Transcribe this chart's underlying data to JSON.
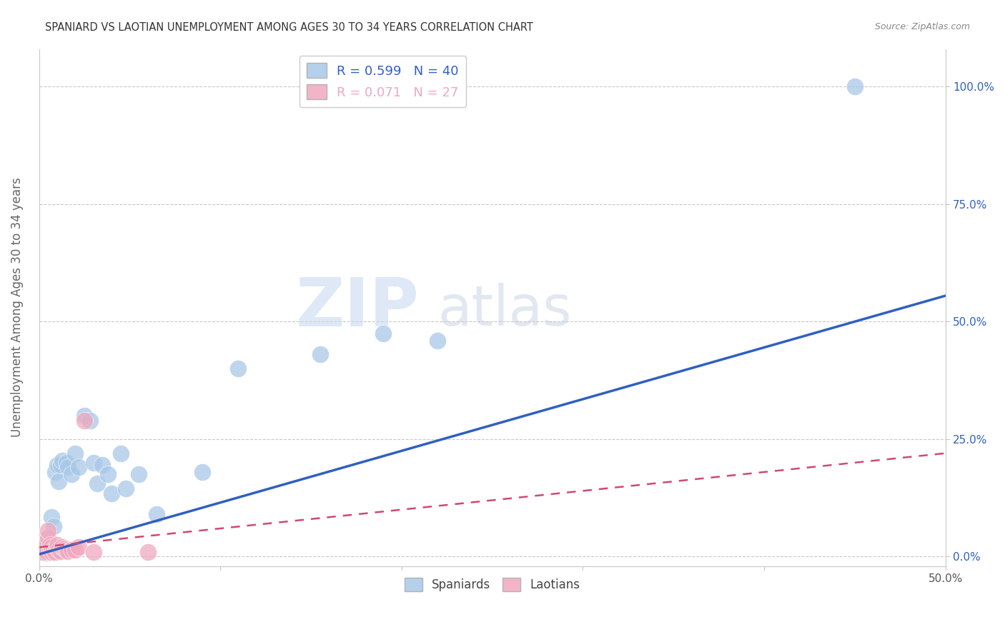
{
  "title": "SPANIARD VS LAOTIAN UNEMPLOYMENT AMONG AGES 30 TO 34 YEARS CORRELATION CHART",
  "source": "Source: ZipAtlas.com",
  "ylabel": "Unemployment Among Ages 30 to 34 years",
  "xlim": [
    0.0,
    0.5
  ],
  "ylim": [
    -0.02,
    1.08
  ],
  "xticks": [
    0.0,
    0.1,
    0.2,
    0.3,
    0.4,
    0.5
  ],
  "yticks": [
    0.0,
    0.25,
    0.5,
    0.75,
    1.0
  ],
  "ytick_labels": [
    "0.0%",
    "25.0%",
    "50.0%",
    "75.0%",
    "100.0%"
  ],
  "xtick_labels_left": [
    "0.0%",
    "",
    "",
    "",
    "",
    "50.0%"
  ],
  "background_color": "#ffffff",
  "grid_color": "#c8c8c8",
  "watermark_zip": "ZIP",
  "watermark_atlas": "atlas",
  "spaniard_color": "#a8c8e8",
  "laotian_color": "#f0a8be",
  "spaniard_line_color": "#3060c0",
  "laotian_line_color": "#d04870",
  "legend_R_spaniard": "0.599",
  "legend_N_spaniard": "40",
  "legend_R_laotian": "0.071",
  "legend_N_laotian": "27",
  "spaniard_line_x0": 0.0,
  "spaniard_line_y0": 0.005,
  "spaniard_line_x1": 0.5,
  "spaniard_line_y1": 0.555,
  "laotian_line_x0": 0.0,
  "laotian_line_y0": 0.02,
  "laotian_line_x1": 0.5,
  "laotian_line_y1": 0.22,
  "spaniard_x": [
    0.001,
    0.002,
    0.002,
    0.003,
    0.003,
    0.004,
    0.004,
    0.005,
    0.005,
    0.006,
    0.006,
    0.007,
    0.008,
    0.009,
    0.01,
    0.011,
    0.012,
    0.013,
    0.015,
    0.016,
    0.018,
    0.02,
    0.022,
    0.025,
    0.028,
    0.03,
    0.032,
    0.035,
    0.038,
    0.04,
    0.045,
    0.048,
    0.055,
    0.065,
    0.09,
    0.11,
    0.155,
    0.19,
    0.22,
    0.45
  ],
  "spaniard_y": [
    0.01,
    0.015,
    0.025,
    0.01,
    0.02,
    0.015,
    0.008,
    0.02,
    0.012,
    0.018,
    0.01,
    0.085,
    0.065,
    0.18,
    0.195,
    0.16,
    0.195,
    0.205,
    0.2,
    0.19,
    0.175,
    0.22,
    0.19,
    0.3,
    0.29,
    0.2,
    0.155,
    0.195,
    0.175,
    0.135,
    0.22,
    0.145,
    0.175,
    0.09,
    0.18,
    0.4,
    0.43,
    0.475,
    0.46,
    1.0
  ],
  "laotian_x": [
    0.001,
    0.002,
    0.003,
    0.003,
    0.004,
    0.005,
    0.005,
    0.006,
    0.006,
    0.007,
    0.007,
    0.008,
    0.009,
    0.01,
    0.01,
    0.011,
    0.012,
    0.013,
    0.014,
    0.015,
    0.016,
    0.018,
    0.02,
    0.022,
    0.025,
    0.03,
    0.06
  ],
  "laotian_y": [
    0.01,
    0.015,
    0.01,
    0.02,
    0.012,
    0.04,
    0.055,
    0.015,
    0.025,
    0.01,
    0.02,
    0.015,
    0.01,
    0.018,
    0.025,
    0.015,
    0.012,
    0.02,
    0.018,
    0.015,
    0.012,
    0.015,
    0.015,
    0.02,
    0.29,
    0.01,
    0.01
  ]
}
